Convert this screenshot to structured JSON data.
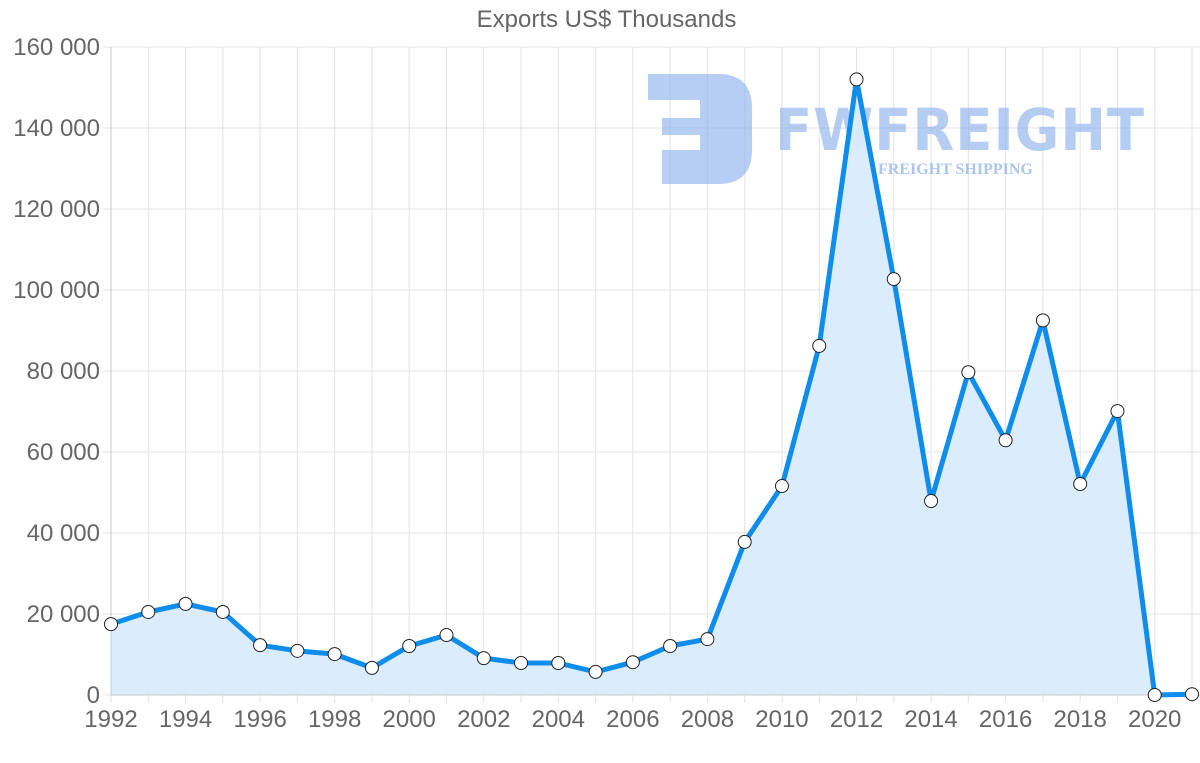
{
  "chart_data": {
    "type": "line",
    "title": "Exports US$ Thousands",
    "xlabel": "",
    "ylabel": "",
    "ylim": [
      0,
      160000
    ],
    "xlim": [
      1992,
      2021
    ],
    "grid": true,
    "legend": null,
    "fill_area": true,
    "y_ticks": [
      "0",
      "20 000",
      "40 000",
      "60 000",
      "80 000",
      "100 000",
      "120 000",
      "140 000",
      "160 000"
    ],
    "x_ticks": [
      "1992",
      "1994",
      "1996",
      "1998",
      "2000",
      "2002",
      "2004",
      "2006",
      "2008",
      "2010",
      "2012",
      "2014",
      "2016",
      "2018",
      "2020"
    ],
    "x": [
      1992,
      1993,
      1994,
      1995,
      1996,
      1997,
      1998,
      1999,
      2000,
      2001,
      2002,
      2003,
      2004,
      2005,
      2006,
      2007,
      2008,
      2009,
      2010,
      2011,
      2012,
      2013,
      2014,
      2015,
      2016,
      2017,
      2018,
      2019,
      2020,
      2021
    ],
    "series": [
      {
        "name": "Exports US$ Thousands",
        "color": "#0f8ded",
        "fill": "#d9ecfc",
        "values": [
          17500,
          20500,
          22500,
          20500,
          12300,
          10900,
          10100,
          6700,
          12100,
          14800,
          9100,
          7900,
          7900,
          5700,
          8100,
          12100,
          13800,
          37800,
          51600,
          86200,
          152000,
          102700,
          47900,
          79700,
          62900,
          92500,
          52100,
          70100,
          0,
          200
        ]
      }
    ]
  },
  "watermark": {
    "brand": "FWFREIGHT",
    "tagline": "FREIGHT SHIPPING"
  },
  "colors": {
    "line": "#0f8ded",
    "area": "#d9ecfc",
    "grid": "#e3e3e3",
    "text": "#666666",
    "watermark": "#8fb3ec"
  }
}
